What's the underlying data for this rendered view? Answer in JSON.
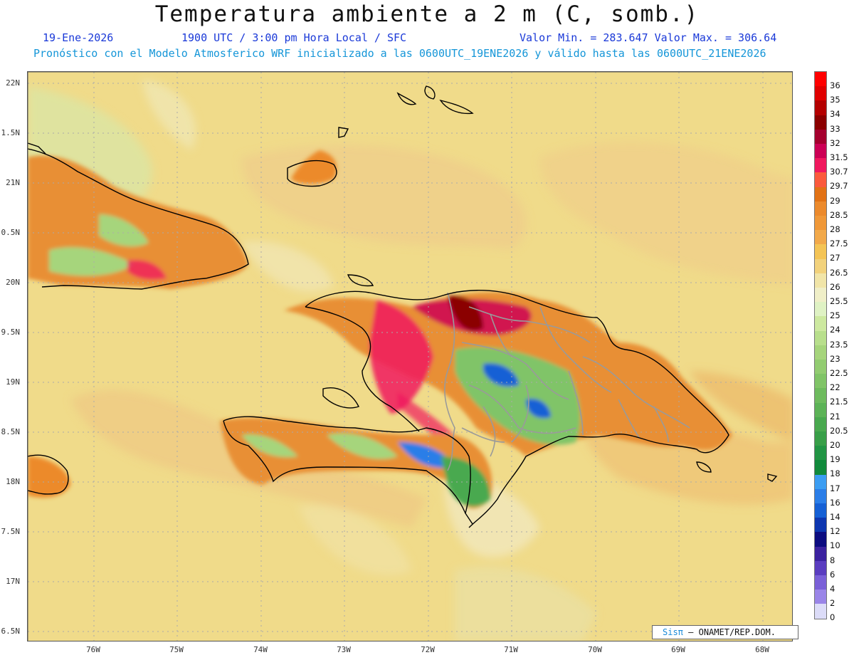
{
  "header": {
    "title": "Temperatura ambiente a 2 m (C, somb.)",
    "date": "19-Ene-2026",
    "utc": "1900 UTC / 3:00 pm Hora Local / SFC",
    "minmax": "Valor Min. = 283.647  Valor Max. = 306.64",
    "description": "Pronóstico con el Modelo Atmosferico WRF inicializado a las 0600UTC_19ENE2026 y válido hasta las  0600UTC_21ENE2026"
  },
  "map": {
    "lat_labels": [
      "22N",
      "1.5N",
      "21N",
      "0.5N",
      "20N",
      "9.5N",
      "19N",
      "8.5N",
      "18N",
      "7.5N",
      "17N",
      "6.5N"
    ],
    "lon_labels": [
      "76W",
      "75W",
      "74W",
      "73W",
      "72W",
      "71W",
      "70W",
      "69W",
      "68W"
    ],
    "background_color": "#f0db8a",
    "coastline_color": "#000000",
    "province_border_color": "#999999"
  },
  "colorbar": {
    "labels": [
      "36",
      "35",
      "34",
      "33",
      "32",
      "31.5",
      "30.7",
      "29.7",
      "29",
      "28.5",
      "28",
      "27.5",
      "27",
      "26.5",
      "26",
      "25.5",
      "25",
      "24",
      "23.5",
      "23",
      "22.5",
      "22",
      "21.5",
      "21",
      "20.5",
      "20",
      "19",
      "18",
      "17",
      "16",
      "14",
      "12",
      "10",
      "8",
      "6",
      "4",
      "2",
      "0"
    ],
    "colors": [
      "#ff0000",
      "#e00000",
      "#b40000",
      "#8b0000",
      "#a5002e",
      "#cc0055",
      "#f0185e",
      "#fb5a3c",
      "#e27215",
      "#ec8a2c",
      "#f09838",
      "#f2a94a",
      "#f4c455",
      "#f2d27c",
      "#f1e5a8",
      "#f0efc8",
      "#dff2c4",
      "#cde9a0",
      "#b8df8c",
      "#a6d57c",
      "#92cc71",
      "#80c467",
      "#6ebb5e",
      "#5cb357",
      "#49a94f",
      "#389f48",
      "#229544",
      "#108a3b",
      "#3b9df2",
      "#2a7ee8",
      "#1560d5",
      "#0d36b0",
      "#0c0c80",
      "#3b22a0",
      "#5a3dc0",
      "#7a60d8",
      "#9a85e8",
      "#dcdcf8"
    ]
  },
  "credit": {
    "brand": "Sisπ",
    "text": "– ONAMET/REP.DOM."
  }
}
